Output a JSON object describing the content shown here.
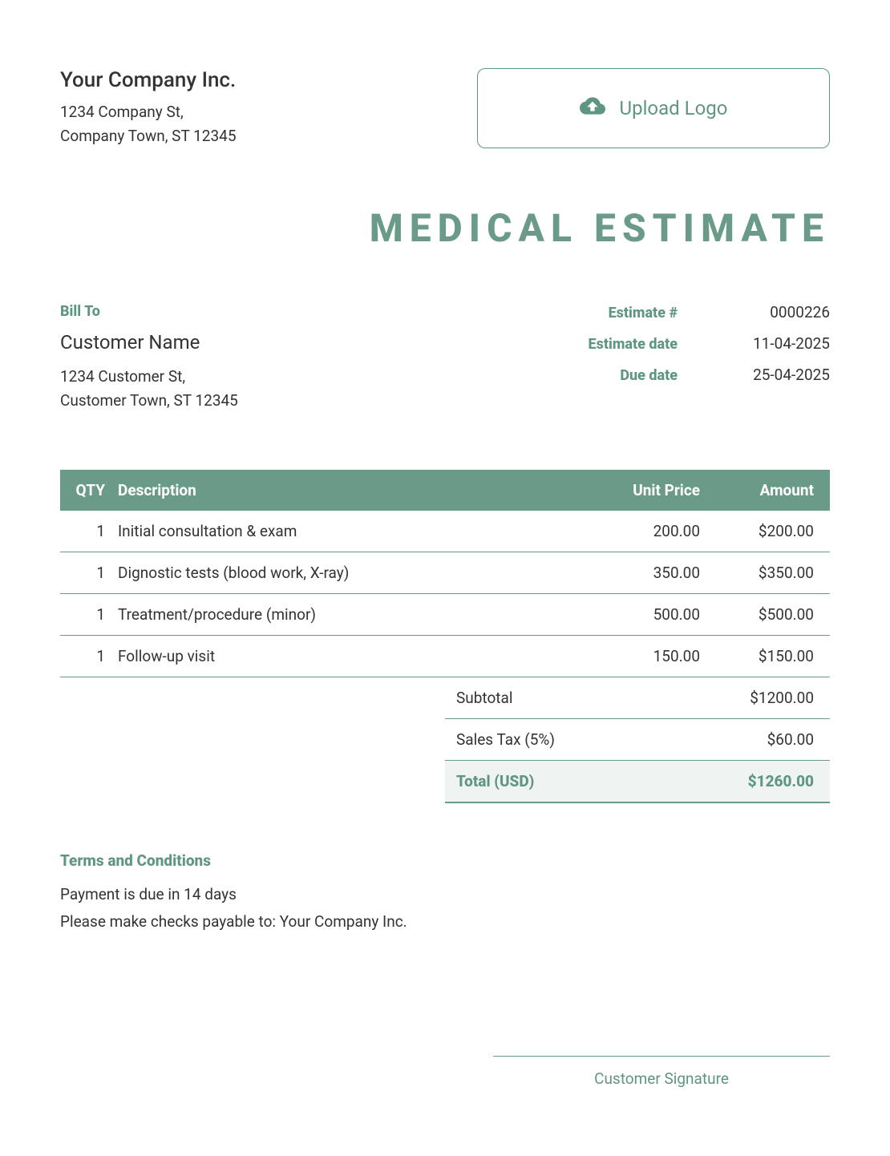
{
  "colors": {
    "accent": "#5f9682",
    "accent_fill": "#6a9b89",
    "text": "#333333",
    "total_bg": "#eff4f2",
    "border": "#6a9b89",
    "white": "#ffffff"
  },
  "company": {
    "name": "Your Company Inc.",
    "address_line1": "1234 Company St,",
    "address_line2": "Company Town, ST 12345"
  },
  "upload_logo_label": "Upload Logo",
  "document_title": "MEDICAL ESTIMATE",
  "bill_to": {
    "label": "Bill To",
    "name": "Customer Name",
    "address_line1": "1234 Customer St,",
    "address_line2": "Customer Town, ST 12345"
  },
  "meta": {
    "rows": [
      {
        "label": "Estimate #",
        "value": "0000226"
      },
      {
        "label": "Estimate date",
        "value": "11-04-2025"
      },
      {
        "label": "Due date",
        "value": "25-04-2025"
      }
    ]
  },
  "table": {
    "columns": {
      "qty": "QTY",
      "description": "Description",
      "unit_price": "Unit Price",
      "amount": "Amount"
    },
    "rows": [
      {
        "qty": "1",
        "description": "Initial consultation & exam",
        "unit_price": "200.00",
        "amount": "$200.00"
      },
      {
        "qty": "1",
        "description": "Dignostic tests (blood work, X-ray)",
        "unit_price": "350.00",
        "amount": "$350.00"
      },
      {
        "qty": "1",
        "description": "Treatment/procedure (minor)",
        "unit_price": "500.00",
        "amount": "$500.00"
      },
      {
        "qty": "1",
        "description": "Follow-up visit",
        "unit_price": "150.00",
        "amount": "$150.00"
      }
    ]
  },
  "totals": {
    "subtotal": {
      "label": "Subtotal",
      "value": "$1200.00"
    },
    "tax": {
      "label": "Sales Tax (5%)",
      "value": "$60.00"
    },
    "grand": {
      "label": "Total (USD)",
      "value": "$1260.00"
    }
  },
  "terms": {
    "label": "Terms and Conditions",
    "line1": "Payment is due in 14 days",
    "line2": "Please make checks payable to: Your Company Inc."
  },
  "signature_label": "Customer Signature"
}
